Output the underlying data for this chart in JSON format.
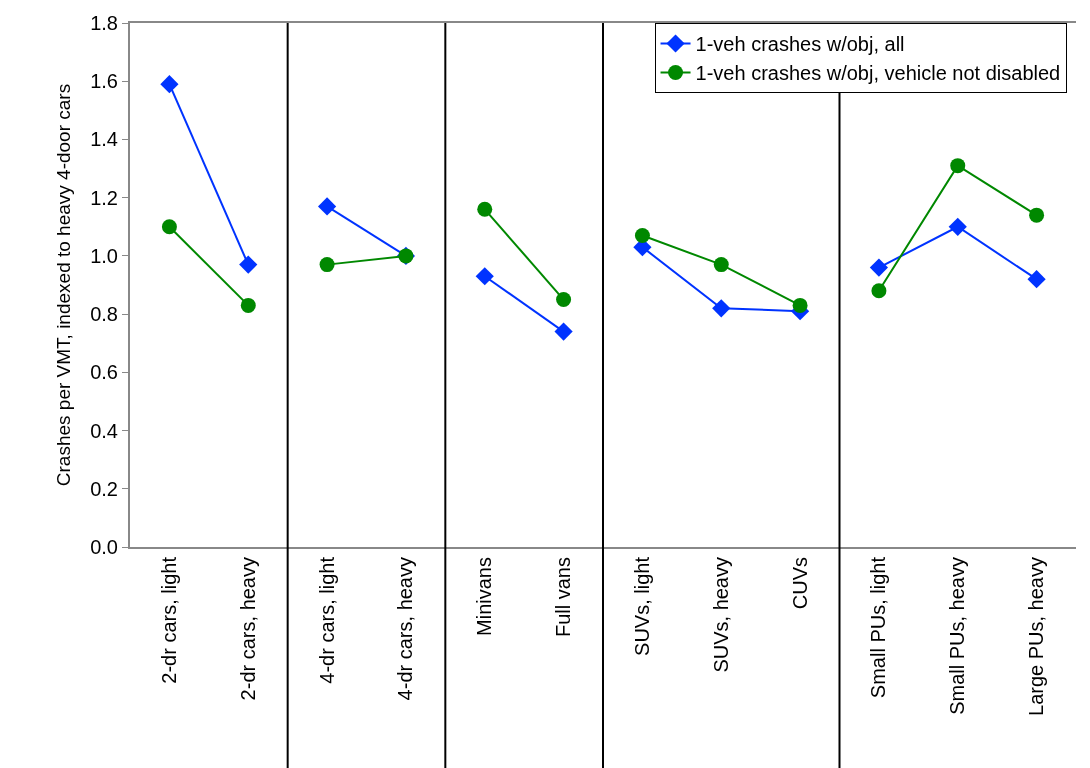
{
  "chart_data": {
    "type": "line",
    "ylabel": "Crashes per VMT, indexed to heavy 4-door cars",
    "categories": [
      "2-dr cars, light",
      "2-dr cars, heavy",
      "4-dr cars, light",
      "4-dr cars, heavy",
      "Minivans",
      "Full vans",
      "SUVs, light",
      "SUVs, heavy",
      "CUVs",
      "Small PUs, light",
      "Small PUs, heavy",
      "Large PUs, heavy"
    ],
    "series": [
      {
        "name": "1-veh crashes w/obj, all",
        "color": "#0033ff",
        "marker": "diamond",
        "values": [
          1.59,
          0.97,
          null,
          null,
          null,
          null,
          null,
          null,
          null,
          null,
          null,
          null
        ]
      },
      {
        "name": "1-veh crashes w/obj, vehicle not disabled",
        "color": "#008800",
        "marker": "circle",
        "values": [
          1.1,
          0.83,
          null,
          null,
          null,
          null,
          null,
          null,
          null,
          null,
          null,
          null
        ]
      },
      {
        "color": "#0033ff",
        "marker": "diamond",
        "values": [
          null,
          null,
          1.17,
          1.0,
          null,
          null,
          null,
          null,
          null,
          null,
          null,
          null
        ]
      },
      {
        "color": "#008800",
        "marker": "circle",
        "values": [
          null,
          null,
          0.97,
          1.0,
          null,
          null,
          null,
          null,
          null,
          null,
          null,
          null
        ]
      },
      {
        "color": "#0033ff",
        "marker": "diamond",
        "values": [
          null,
          null,
          null,
          null,
          0.93,
          0.74,
          null,
          null,
          null,
          null,
          null,
          null
        ]
      },
      {
        "color": "#008800",
        "marker": "circle",
        "values": [
          null,
          null,
          null,
          null,
          1.16,
          0.85,
          null,
          null,
          null,
          null,
          null,
          null
        ]
      },
      {
        "color": "#0033ff",
        "marker": "diamond",
        "values": [
          null,
          null,
          null,
          null,
          null,
          null,
          1.03,
          0.82,
          0.81,
          null,
          null,
          null
        ]
      },
      {
        "color": "#008800",
        "marker": "circle",
        "values": [
          null,
          null,
          null,
          null,
          null,
          null,
          1.07,
          0.97,
          0.83,
          null,
          null,
          null
        ]
      },
      {
        "color": "#0033ff",
        "marker": "diamond",
        "values": [
          null,
          null,
          null,
          null,
          null,
          null,
          null,
          null,
          null,
          0.96,
          1.1,
          0.92
        ]
      },
      {
        "color": "#008800",
        "marker": "circle",
        "values": [
          null,
          null,
          null,
          null,
          null,
          null,
          null,
          null,
          null,
          0.88,
          1.31,
          1.14
        ]
      }
    ],
    "ylim": [
      0,
      1.8
    ],
    "yticks": [
      {
        "value": 0,
        "label": "0.0"
      },
      {
        "value": 0.2,
        "label": "0.2"
      },
      {
        "value": 0.4,
        "label": "0.4"
      },
      {
        "value": 0.6,
        "label": "0.6"
      },
      {
        "value": 0.8,
        "label": "0.8"
      },
      {
        "value": 1.0,
        "label": "1.0"
      },
      {
        "value": 1.2,
        "label": "1.2"
      },
      {
        "value": 1.4,
        "label": "1.4"
      },
      {
        "value": 1.6,
        "label": "1.6"
      },
      {
        "value": 1.8,
        "label": "1.8"
      }
    ],
    "legend": "top right",
    "line_style": "solid"
  }
}
